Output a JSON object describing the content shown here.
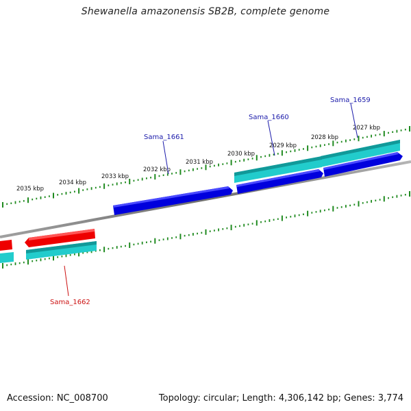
{
  "title": "Shewanella amazonensis SB2B, complete genome",
  "footer": {
    "accession": "Accession: NC_008700",
    "summary": "Topology: circular; Length: 4,306,142 bp; Genes: 3,774"
  },
  "colors": {
    "backbone": "#7a7a7a",
    "tick": "#1f8a1f",
    "forward_gene": "#0000dd",
    "reverse_gene": "#ee0000",
    "cds": "#22cccc",
    "forward_label": "#1a1aaa",
    "reverse_label": "#cc1111"
  },
  "scale_labels": [
    "2035 kbp",
    "2034 kbp",
    "2033 kbp",
    "2032 kbp",
    "2031 kbp",
    "2030 kbp",
    "2029 kbp",
    "2028 kbp",
    "2027 kbp"
  ],
  "gene_labels": {
    "sama_1659": "Sama_1659",
    "sama_1660": "Sama_1660",
    "sama_1661": "Sama_1661",
    "sama_1662": "Sama_1662"
  }
}
